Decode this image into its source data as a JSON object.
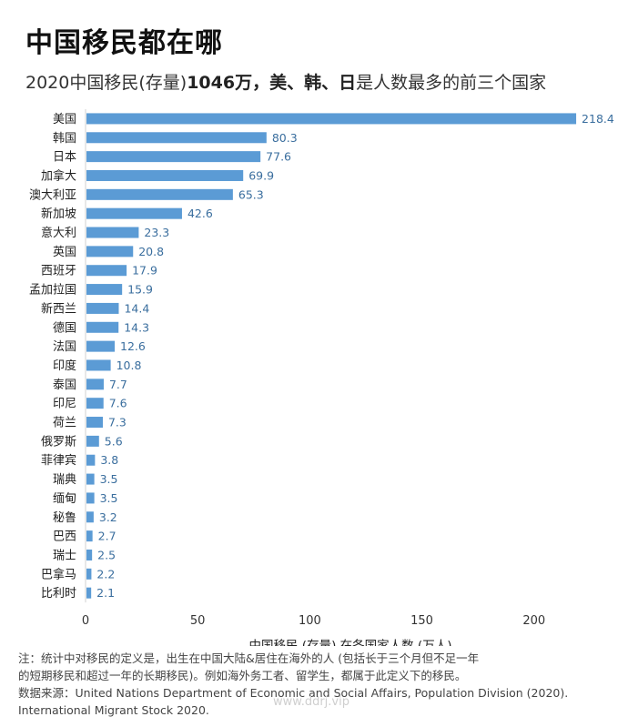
{
  "header": {
    "title": "中国移民都在哪",
    "subtitle_prefix": "2020中国移民(存量)",
    "subtitle_bold": "1046万，美、韩、日",
    "subtitle_suffix": "是人数最多的前三个国家"
  },
  "chart_data": {
    "type": "bar",
    "orientation": "horizontal",
    "categories": [
      "美国",
      "韩国",
      "日本",
      "加拿大",
      "澳大利亚",
      "新加坡",
      "意大利",
      "英国",
      "西班牙",
      "孟加拉国",
      "新西兰",
      "德国",
      "法国",
      "印度",
      "泰国",
      "印尼",
      "荷兰",
      "俄罗斯",
      "菲律宾",
      "瑞典",
      "缅甸",
      "秘鲁",
      "巴西",
      "瑞士",
      "巴拿马",
      "比利时"
    ],
    "values": [
      218.4,
      80.3,
      77.6,
      69.9,
      65.3,
      42.6,
      23.3,
      20.8,
      17.9,
      15.9,
      14.4,
      14.3,
      12.6,
      10.8,
      7.7,
      7.6,
      7.3,
      5.6,
      3.8,
      3.5,
      3.5,
      3.2,
      2.7,
      2.5,
      2.2,
      2.1
    ],
    "value_labels": [
      "218.4",
      "80.3",
      "77.6",
      "69.9",
      "65.3",
      "42.6",
      "23.3",
      "20.8",
      "17.9",
      "15.9",
      "14.4",
      "14.3",
      "12.6",
      "10.8",
      "7.7",
      "7.6",
      "7.3",
      "5.6",
      "3.8",
      "3.5",
      "3.5",
      "3.2",
      "2.7",
      "2.5",
      "2.2",
      "2.1"
    ],
    "xticks": [
      0,
      50,
      100,
      150,
      200
    ],
    "xlim": [
      0,
      220
    ],
    "xlabel": "中国移民 (存量) 在各国家人数 (万人)",
    "bar_color": "#5b9bd5",
    "label_color": "#3a6e9e",
    "grid": false,
    "legend": "none"
  },
  "notes": {
    "line1": "注：统计中对移民的定义是，出生在中国大陆&居住在海外的人 (包括长于三个月但不足一年",
    "line2": "的短期移民和超过一年的长期移民)。例如海外务工者、留学生，都属于此定义下的移民。",
    "line3": "数据来源：United Nations Department of Economic and Social Affairs, Population Division (2020).",
    "line4": "International Migrant Stock 2020."
  },
  "watermark": "www.ddrj.vip"
}
